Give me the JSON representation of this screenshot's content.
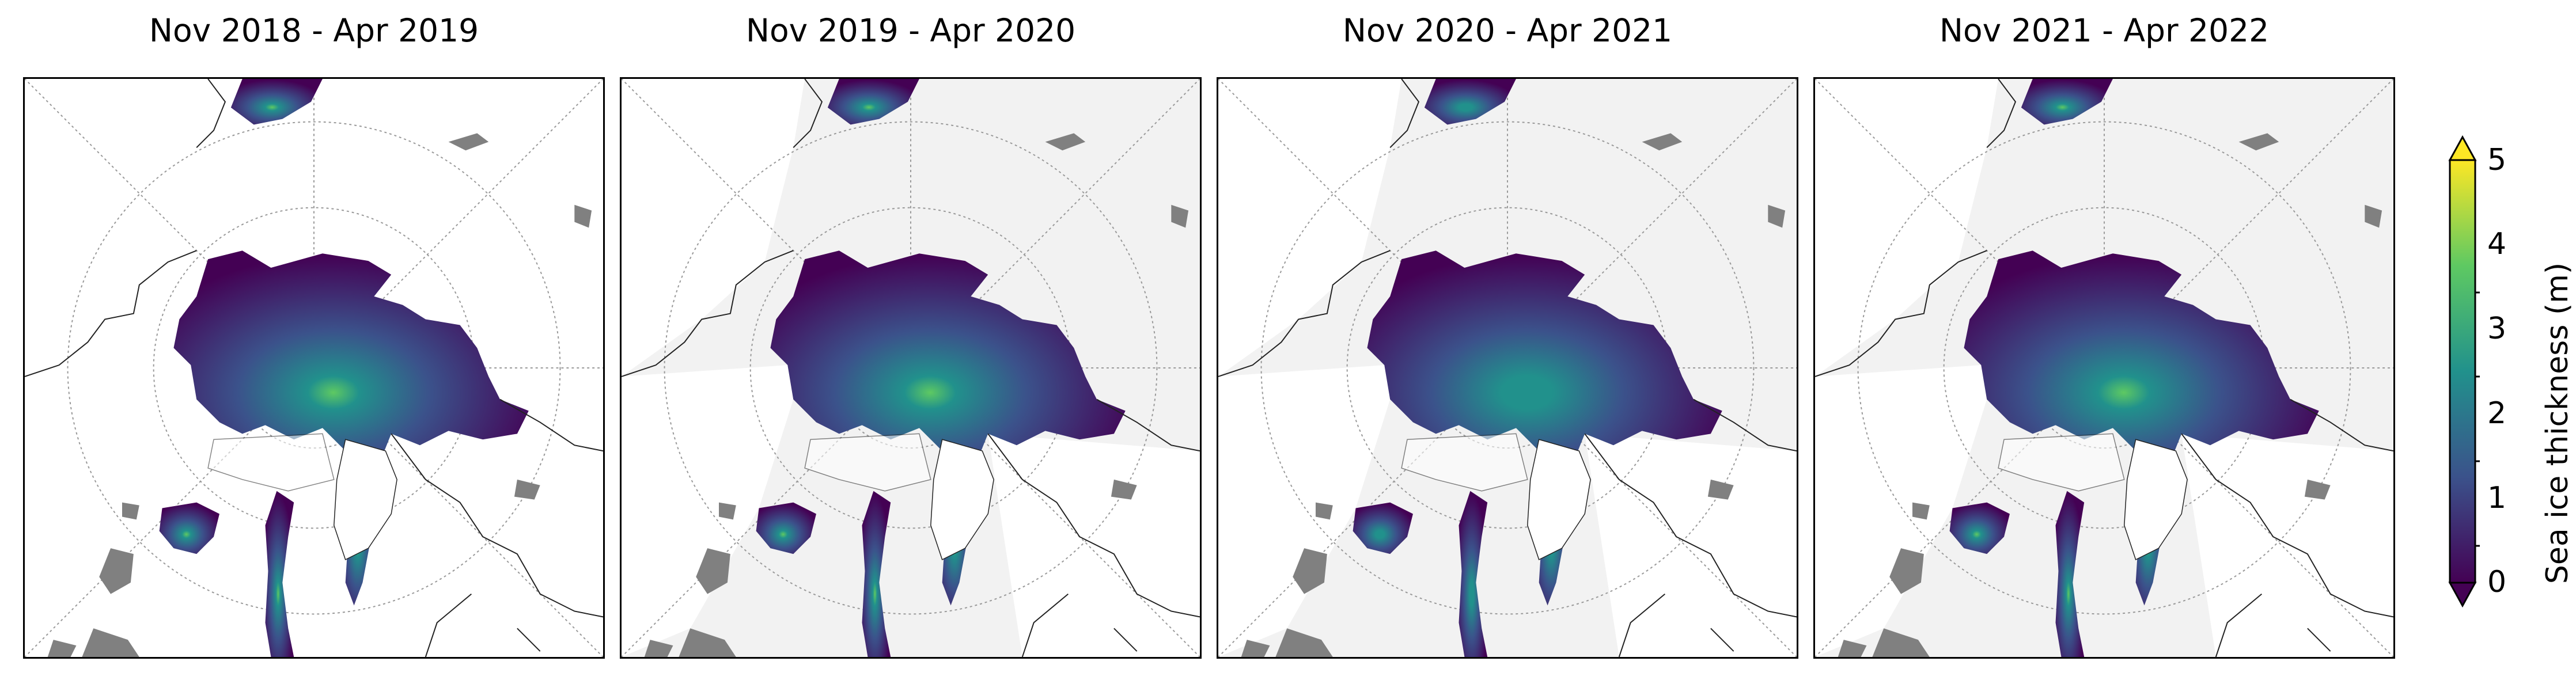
{
  "panels": [
    {
      "title": "Nov 2018 - Apr 2019"
    },
    {
      "title": "Nov 2019 - Apr 2020"
    },
    {
      "title": "Nov 2020 - Apr 2021"
    },
    {
      "title": "Nov 2021 - Apr 2022"
    }
  ],
  "colorbar": {
    "label": "Sea ice thickness (m)",
    "min": 0,
    "max": 5,
    "ticks": [
      "0",
      "1",
      "2",
      "3",
      "4",
      "5"
    ],
    "colormap": "viridis",
    "colors": [
      "#440154",
      "#3b528b",
      "#21918c",
      "#5ec962",
      "#fde725"
    ],
    "extend": "both"
  },
  "map": {
    "projection": "north-polar-stereographic",
    "outside_data_color": "#f2f2f2",
    "land_color": "#ffffff",
    "lake_color": "#808080",
    "gridlines": "dotted grey"
  }
}
